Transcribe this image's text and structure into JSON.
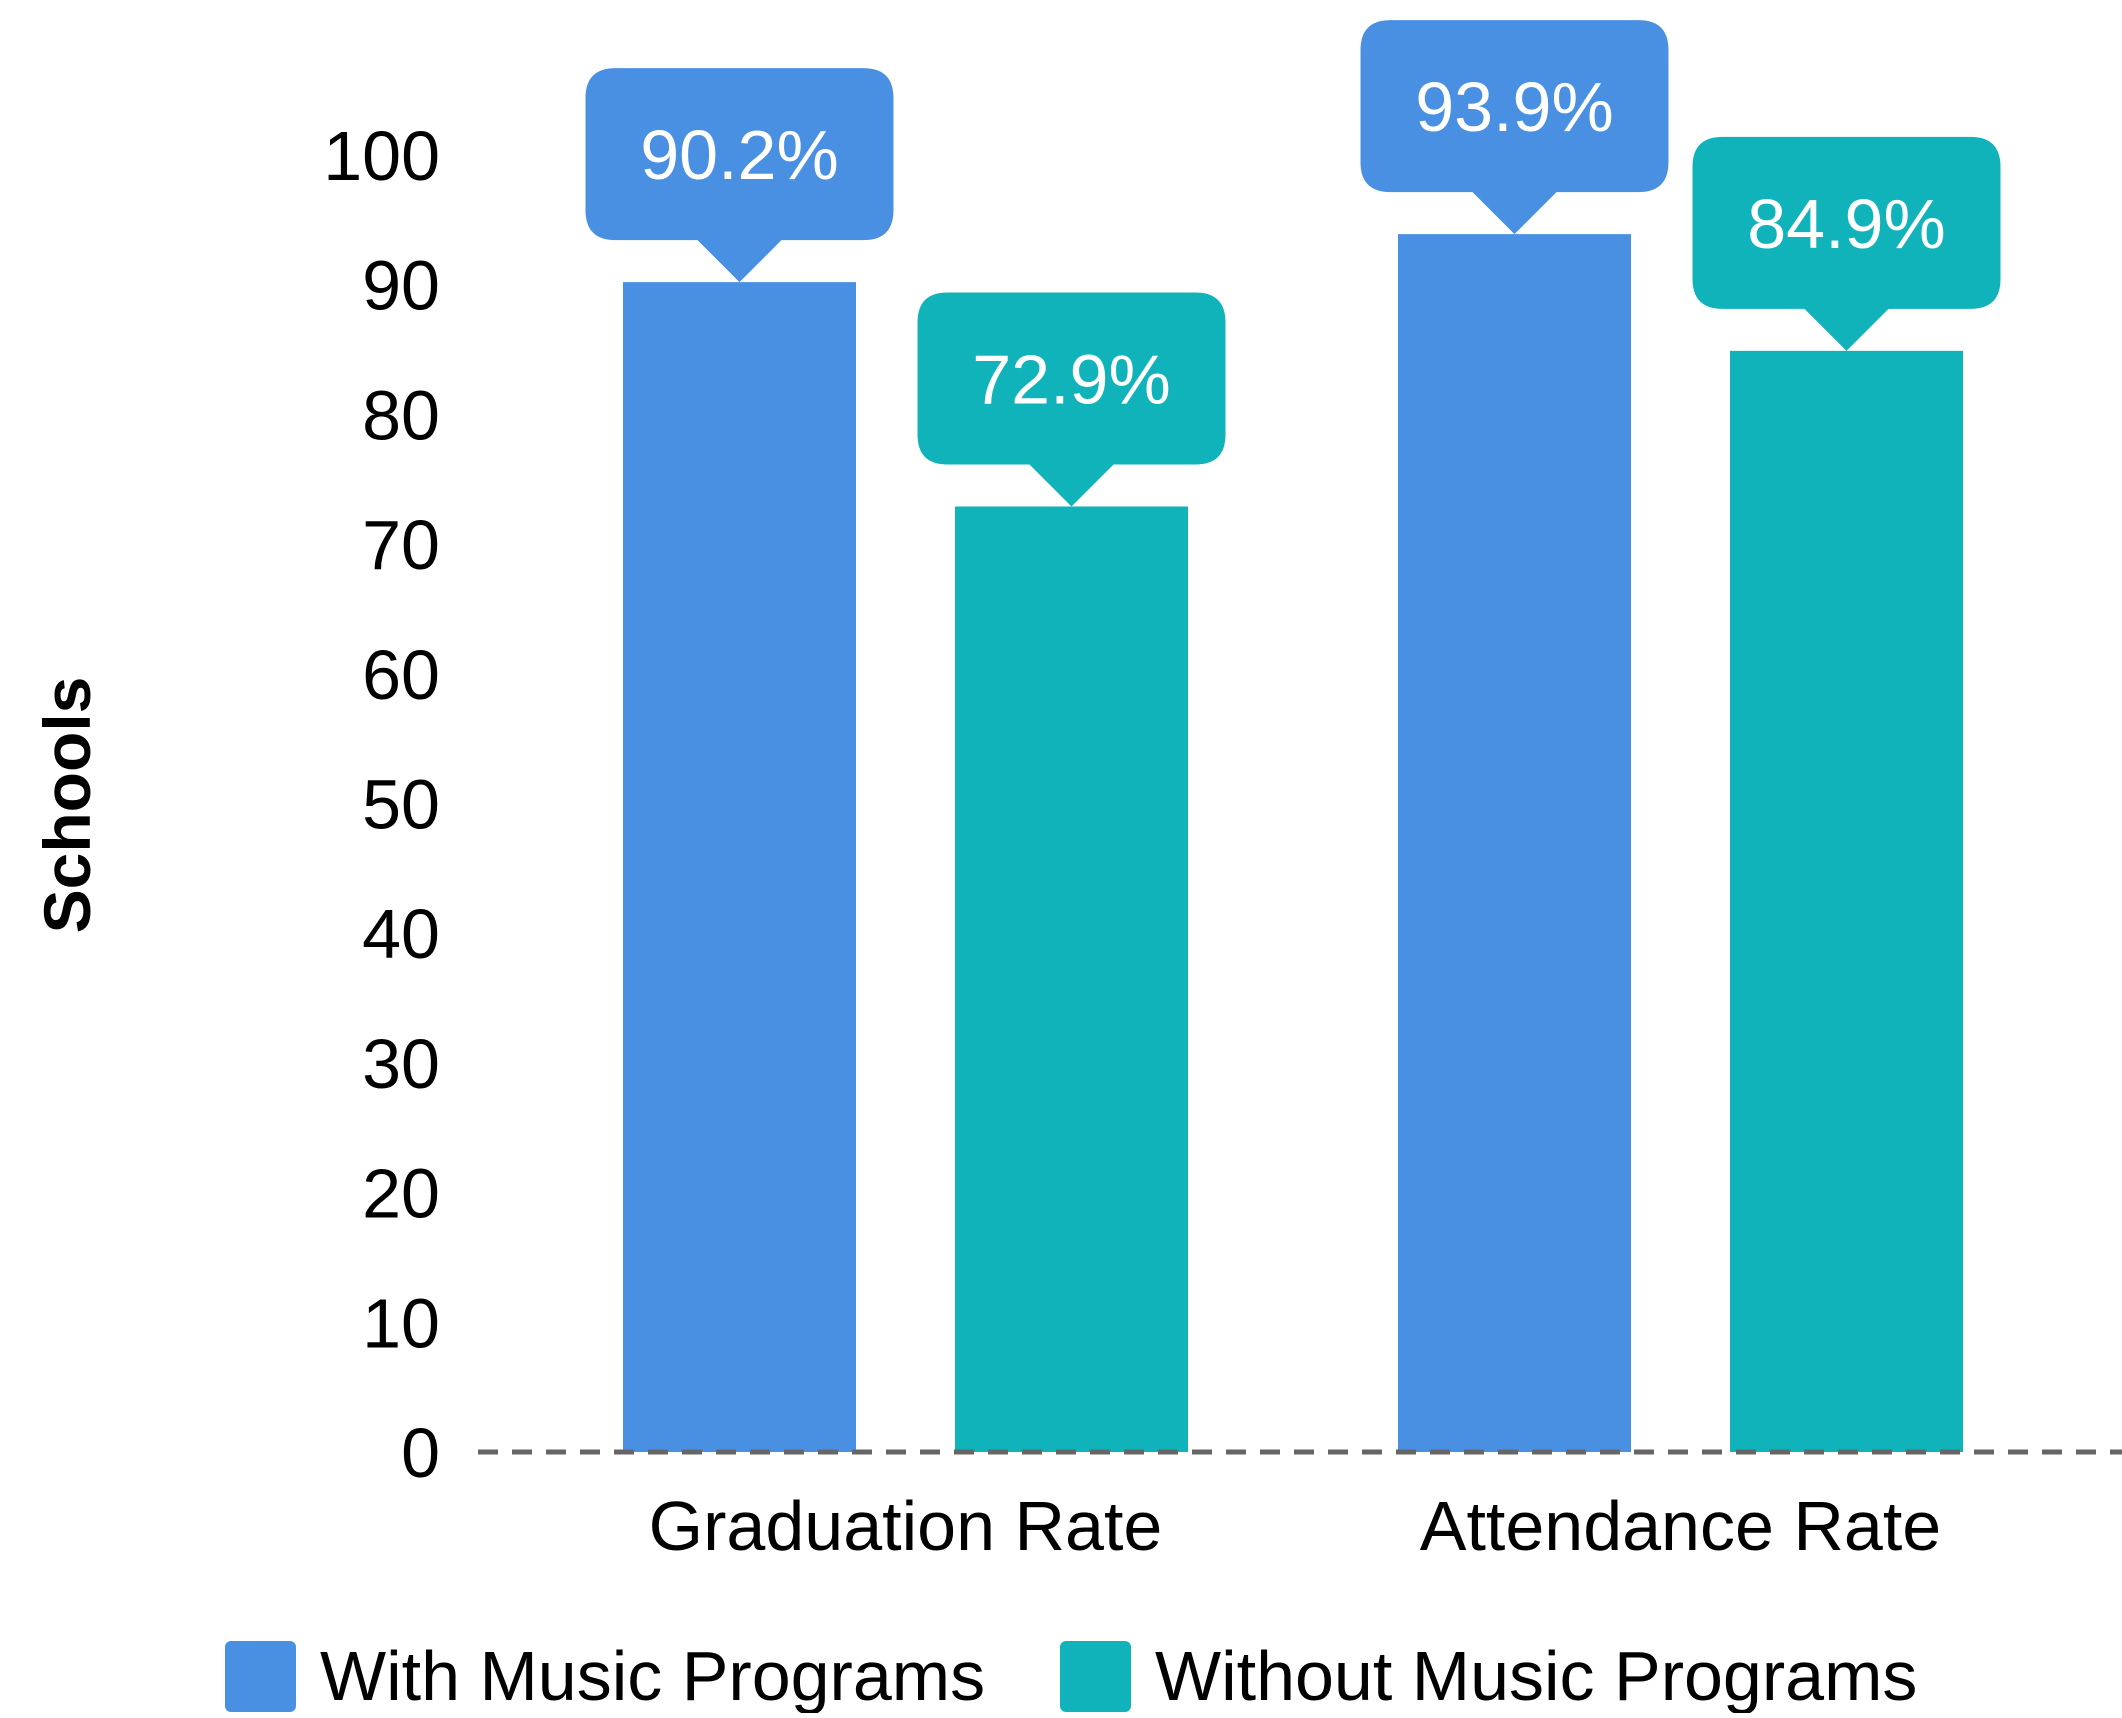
{
  "chart_data": {
    "type": "bar",
    "categories": [
      "Graduation Rate",
      "Attendance Rate"
    ],
    "series": [
      {
        "name": "With Music Programs",
        "values": [
          90.2,
          93.9
        ],
        "color": "#4a90e2"
      },
      {
        "name": "Without Music Programs",
        "values": [
          72.9,
          84.9
        ],
        "color": "#11b3bb"
      }
    ],
    "data_labels": [
      [
        "90.2%",
        "93.9%"
      ],
      [
        "72.9%",
        "84.9%"
      ]
    ],
    "title": "",
    "xlabel": "",
    "ylabel": "Schools",
    "ylim": [
      0,
      100
    ],
    "yticks": [
      "0",
      "10",
      "20",
      "30",
      "40",
      "50",
      "60",
      "70",
      "80",
      "90",
      "100"
    ],
    "grid": false,
    "baseline": "dashed",
    "legend_position": "bottom"
  }
}
